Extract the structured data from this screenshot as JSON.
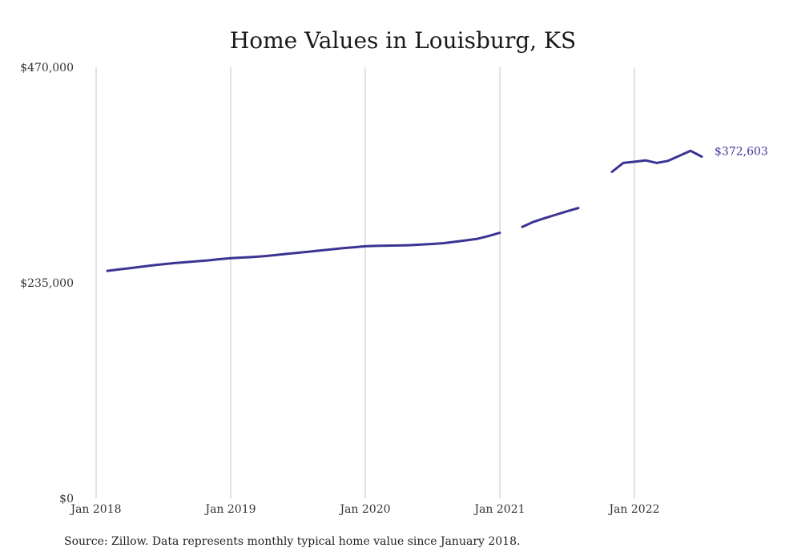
{
  "chart_data": {
    "type": "line",
    "title": "Home Values in Louisburg, KS",
    "ylim": [
      0,
      470000
    ],
    "y_ticks": [
      {
        "value": 0,
        "label": "$0"
      },
      {
        "value": 235000,
        "label": "$235,000"
      },
      {
        "value": 470000,
        "label": "$470,000"
      }
    ],
    "x_ticks": [
      {
        "date": "2018-01",
        "label": "Jan 2018"
      },
      {
        "date": "2019-01",
        "label": "Jan 2019"
      },
      {
        "date": "2020-01",
        "label": "Jan 2020"
      },
      {
        "date": "2021-01",
        "label": "Jan 2021"
      },
      {
        "date": "2022-01",
        "label": "Jan 2022"
      }
    ],
    "grid": {
      "vertical": true,
      "horizontal": false
    },
    "series": [
      {
        "color": "#3b3494",
        "points": [
          {
            "date": "2018-02",
            "value": 248000
          },
          {
            "date": "2018-03",
            "value": 249500
          },
          {
            "date": "2018-04",
            "value": 251000
          },
          {
            "date": "2018-05",
            "value": 252500
          },
          {
            "date": "2018-06",
            "value": 254000
          },
          {
            "date": "2018-07",
            "value": 255300
          },
          {
            "date": "2018-08",
            "value": 256500
          },
          {
            "date": "2018-09",
            "value": 257500
          },
          {
            "date": "2018-10",
            "value": 258500
          },
          {
            "date": "2018-11",
            "value": 259500
          },
          {
            "date": "2018-12",
            "value": 260800
          },
          {
            "date": "2019-01",
            "value": 261800
          },
          {
            "date": "2019-02",
            "value": 262500
          },
          {
            "date": "2019-03",
            "value": 263200
          },
          {
            "date": "2019-04",
            "value": 264000
          },
          {
            "date": "2019-05",
            "value": 265200
          },
          {
            "date": "2019-06",
            "value": 266500
          },
          {
            "date": "2019-07",
            "value": 267800
          },
          {
            "date": "2019-08",
            "value": 269000
          },
          {
            "date": "2019-09",
            "value": 270300
          },
          {
            "date": "2019-10",
            "value": 271500
          },
          {
            "date": "2019-11",
            "value": 272700
          },
          {
            "date": "2019-12",
            "value": 273800
          },
          {
            "date": "2020-01",
            "value": 274800
          },
          {
            "date": "2020-02",
            "value": 275300
          },
          {
            "date": "2020-03",
            "value": 275500
          },
          {
            "date": "2020-04",
            "value": 275700
          },
          {
            "date": "2020-05",
            "value": 276100
          },
          {
            "date": "2020-06",
            "value": 276700
          },
          {
            "date": "2020-07",
            "value": 277400
          },
          {
            "date": "2020-08",
            "value": 278200
          },
          {
            "date": "2020-09",
            "value": 279700
          },
          {
            "date": "2020-10",
            "value": 281300
          },
          {
            "date": "2020-11",
            "value": 283000
          },
          {
            "date": "2020-12",
            "value": 286000
          },
          {
            "date": "2021-01",
            "value": 289500
          },
          {
            "date": "2021-02",
            "value": null
          },
          {
            "date": "2021-03",
            "value": 296000
          },
          {
            "date": "2021-04",
            "value": 301500
          },
          {
            "date": "2021-05",
            "value": 305500
          },
          {
            "date": "2021-06",
            "value": 309300
          },
          {
            "date": "2021-07",
            "value": 313000
          },
          {
            "date": "2021-08",
            "value": 316500
          },
          {
            "date": "2021-09",
            "value": null
          },
          {
            "date": "2021-10",
            "value": null
          },
          {
            "date": "2021-11",
            "value": 356000
          },
          {
            "date": "2021-12",
            "value": 365700
          },
          {
            "date": "2022-01",
            "value": 367000
          },
          {
            "date": "2022-02",
            "value": 368500
          },
          {
            "date": "2022-03",
            "value": 365700
          },
          {
            "date": "2022-04",
            "value": 368000
          },
          {
            "date": "2022-05",
            "value": 373500
          },
          {
            "date": "2022-06",
            "value": 379000
          },
          {
            "date": "2022-07",
            "value": 372603
          }
        ]
      }
    ],
    "end_label": "$372,603"
  },
  "source": "Source: Zillow. Data represents monthly typical home value since January 2018."
}
